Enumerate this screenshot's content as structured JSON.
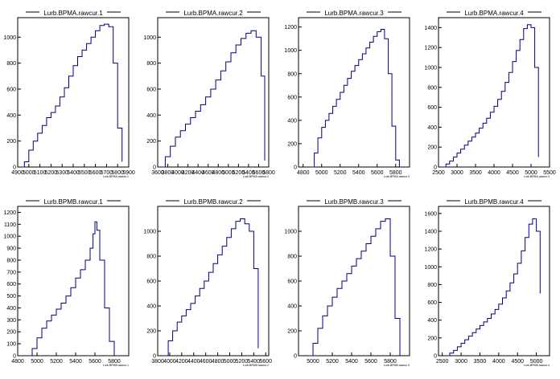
{
  "colors": {
    "line": "#00007f",
    "axis": "#000000",
    "background": "#ffffff"
  },
  "chart_data": [
    {
      "type": "bar",
      "title": "Lurb.BPMA.rawcur.1",
      "xlabel": "Lurb.BPMA.rawcur.1",
      "ylabel": "",
      "xlim": [
        4900,
        5900
      ],
      "ylim": [
        0,
        1150
      ],
      "xticks": [
        "4900",
        "5000",
        "5100",
        "5200",
        "5300",
        "5400",
        "5500",
        "5600",
        "5700",
        "5800",
        "5900"
      ],
      "yticks": [
        "0",
        "200",
        "400",
        "600",
        "800",
        "1000"
      ],
      "x": [
        4920,
        4960,
        5000,
        5040,
        5080,
        5120,
        5160,
        5200,
        5240,
        5280,
        5320,
        5360,
        5400,
        5440,
        5480,
        5520,
        5560,
        5600,
        5640,
        5680,
        5720,
        5760,
        5800,
        5840
      ],
      "values": [
        0,
        40,
        130,
        200,
        260,
        320,
        380,
        420,
        470,
        540,
        610,
        700,
        780,
        850,
        900,
        950,
        1000,
        1050,
        1090,
        1100,
        1080,
        800,
        300,
        40
      ]
    },
    {
      "type": "bar",
      "title": "Lurb.BPMA.rawcur.2",
      "xlabel": "Lurb.BPMA.rawcur.2",
      "ylabel": "",
      "xlim": [
        3600,
        5800
      ],
      "ylim": [
        0,
        1150
      ],
      "xticks": [
        "3600",
        "3800",
        "4000",
        "4200",
        "4400",
        "4600",
        "4800",
        "5000",
        "5200",
        "5400",
        "5600",
        "5800"
      ],
      "yticks": [
        "0",
        "200",
        "400",
        "600",
        "800",
        "1000"
      ],
      "x": [
        3650,
        3750,
        3850,
        3950,
        4050,
        4150,
        4250,
        4350,
        4450,
        4550,
        4650,
        4750,
        4850,
        4950,
        5050,
        5150,
        5250,
        5350,
        5450,
        5550,
        5650,
        5720
      ],
      "values": [
        0,
        80,
        160,
        230,
        280,
        330,
        380,
        430,
        480,
        540,
        600,
        670,
        740,
        810,
        880,
        940,
        990,
        1030,
        1050,
        1000,
        700,
        50
      ]
    },
    {
      "type": "bar",
      "title": "Lurb.BPMA.rawcur.3",
      "xlabel": "Lurb.BPMA.rawcur.3",
      "ylabel": "",
      "xlim": [
        4750,
        5950
      ],
      "ylim": [
        0,
        1280
      ],
      "xticks": [
        "4800",
        "5000",
        "5200",
        "5400",
        "5600",
        "5800"
      ],
      "yticks": [
        "0",
        "200",
        "400",
        "600",
        "800",
        "1000",
        "1200"
      ],
      "x": [
        4880,
        4920,
        4960,
        5000,
        5040,
        5080,
        5120,
        5160,
        5200,
        5240,
        5280,
        5320,
        5360,
        5400,
        5440,
        5480,
        5520,
        5560,
        5600,
        5640,
        5680,
        5720,
        5760,
        5800,
        5840
      ],
      "values": [
        0,
        120,
        250,
        340,
        400,
        460,
        520,
        580,
        640,
        700,
        760,
        820,
        870,
        920,
        970,
        1020,
        1070,
        1120,
        1160,
        1180,
        1100,
        800,
        350,
        60,
        0
      ]
    },
    {
      "type": "bar",
      "title": "Lurb.BPMA.rawcur.4",
      "xlabel": "Lurb.BPMA.rawcur.4",
      "ylabel": "",
      "xlim": [
        2500,
        5500
      ],
      "ylim": [
        0,
        1500
      ],
      "xticks": [
        "2500",
        "3000",
        "3500",
        "4000",
        "4500",
        "5000",
        "5500"
      ],
      "yticks": [
        "0",
        "200",
        "400",
        "600",
        "800",
        "1000",
        "1200",
        "1400"
      ],
      "x": [
        2600,
        2700,
        2800,
        2900,
        3000,
        3100,
        3200,
        3300,
        3400,
        3500,
        3600,
        3700,
        3800,
        3900,
        4000,
        4100,
        4200,
        4300,
        4400,
        4500,
        4600,
        4700,
        4800,
        4900,
        5000,
        5100,
        5200
      ],
      "values": [
        0,
        30,
        60,
        100,
        140,
        180,
        220,
        260,
        300,
        340,
        390,
        440,
        490,
        550,
        610,
        680,
        760,
        850,
        950,
        1060,
        1170,
        1280,
        1390,
        1430,
        1400,
        1000,
        100
      ]
    },
    {
      "type": "bar",
      "title": "Lurb.BPMB.rawcur.1",
      "xlabel": "Lurb.BPMB.rawcur.1",
      "ylabel": "",
      "xlim": [
        4800,
        5950
      ],
      "ylim": [
        0,
        1250
      ],
      "xticks": [
        "4800",
        "5000",
        "5200",
        "5400",
        "5600",
        "5800"
      ],
      "yticks": [
        "0",
        "100",
        "200",
        "300",
        "400",
        "500",
        "600",
        "700",
        "800",
        "900",
        "1000",
        "1100",
        "1200"
      ],
      "x": [
        4900,
        4950,
        5000,
        5050,
        5100,
        5150,
        5200,
        5250,
        5300,
        5350,
        5400,
        5450,
        5500,
        5550,
        5580,
        5600,
        5620,
        5650,
        5700,
        5750,
        5800
      ],
      "values": [
        0,
        60,
        150,
        230,
        290,
        340,
        390,
        440,
        500,
        570,
        650,
        720,
        800,
        900,
        1020,
        1120,
        1050,
        800,
        400,
        120,
        0
      ]
    },
    {
      "type": "bar",
      "title": "Lurb.BPMB.rawcur.2",
      "xlabel": "Lurb.BPMB.rawcur.2",
      "ylabel": "",
      "xlim": [
        3800,
        5650
      ],
      "ylim": [
        0,
        1200
      ],
      "xticks": [
        "3800",
        "4000",
        "4200",
        "4400",
        "4600",
        "4800",
        "5000",
        "5200",
        "5400",
        "5600"
      ],
      "yticks": [
        "0",
        "200",
        "400",
        "600",
        "800",
        "1000"
      ],
      "x": [
        3900,
        3975,
        4050,
        4125,
        4200,
        4275,
        4350,
        4425,
        4500,
        4575,
        4650,
        4725,
        4800,
        4875,
        4950,
        5025,
        5100,
        5175,
        5250,
        5325,
        5400,
        5475
      ],
      "values": [
        0,
        120,
        200,
        270,
        320,
        370,
        420,
        480,
        540,
        600,
        670,
        740,
        810,
        880,
        950,
        1020,
        1080,
        1100,
        1060,
        1000,
        700,
        60
      ]
    },
    {
      "type": "bar",
      "title": "Lurb.BPMB.rawcur.3",
      "xlabel": "Lurb.BPMB.rawcur.3",
      "ylabel": "",
      "xlim": [
        4850,
        6000
      ],
      "ylim": [
        0,
        1200
      ],
      "xticks": [
        "5000",
        "5200",
        "5400",
        "5600",
        "5800"
      ],
      "yticks": [
        "0",
        "200",
        "400",
        "600",
        "800",
        "1000"
      ],
      "x": [
        4950,
        5000,
        5050,
        5100,
        5150,
        5200,
        5250,
        5300,
        5350,
        5400,
        5450,
        5500,
        5550,
        5600,
        5650,
        5700,
        5750,
        5800,
        5850,
        5900
      ],
      "values": [
        0,
        100,
        220,
        320,
        400,
        470,
        540,
        600,
        660,
        720,
        780,
        840,
        900,
        960,
        1020,
        1080,
        1100,
        800,
        300,
        0
      ]
    },
    {
      "type": "bar",
      "title": "Lurb.BPMB.rawcur.4",
      "xlabel": "Lurb.BPMB.rawcur.4",
      "ylabel": "",
      "xlim": [
        2400,
        5350
      ],
      "ylim": [
        0,
        1680
      ],
      "xticks": [
        "2500",
        "3000",
        "3500",
        "4000",
        "4500",
        "5000"
      ],
      "yticks": [
        "0",
        "200",
        "400",
        "600",
        "800",
        "1000",
        "1200",
        "1400",
        "1600"
      ],
      "x": [
        2600,
        2700,
        2800,
        2900,
        3000,
        3100,
        3200,
        3300,
        3400,
        3500,
        3600,
        3700,
        3800,
        3900,
        4000,
        4100,
        4200,
        4300,
        4400,
        4500,
        4600,
        4700,
        4800,
        4900,
        5000,
        5100
      ],
      "values": [
        0,
        30,
        60,
        100,
        140,
        180,
        220,
        260,
        300,
        340,
        380,
        420,
        470,
        520,
        580,
        650,
        730,
        820,
        920,
        1040,
        1180,
        1330,
        1480,
        1540,
        1400,
        700
      ]
    }
  ]
}
